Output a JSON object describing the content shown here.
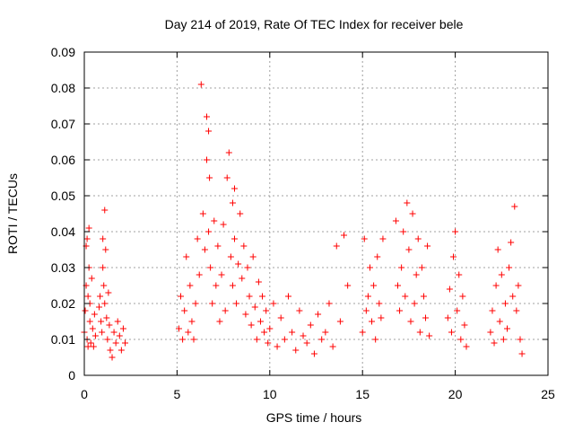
{
  "chart_data": {
    "type": "scatter",
    "title": "Day 214 of 2019, Rate Of TEC Index for receiver bele",
    "xlabel": "GPS time / hours",
    "ylabel": "ROTI / TECUs",
    "xlim": [
      0,
      25
    ],
    "ylim": [
      0,
      0.09
    ],
    "xticks": [
      "0",
      "5",
      "10",
      "15",
      "20",
      "25"
    ],
    "yticks": [
      "0",
      "0.01",
      "0.02",
      "0.03",
      "0.04",
      "0.05",
      "0.06",
      "0.07",
      "0.08",
      "0.09"
    ],
    "grid": true,
    "marker": "+",
    "color": "#ff0000",
    "series": [
      {
        "x": [
          0.0,
          0.05,
          0.1,
          0.1,
          0.15,
          0.15,
          0.2,
          0.2,
          0.25,
          0.25,
          0.3,
          0.3,
          0.35,
          0.4,
          0.45,
          0.5,
          0.55,
          0.6,
          0.8,
          0.85,
          0.9,
          0.95,
          1.0,
          1.0,
          1.05,
          1.1,
          1.1,
          1.15,
          1.2,
          1.25,
          1.3,
          1.35,
          1.4,
          1.5,
          1.6,
          1.7,
          1.8,
          1.9,
          2.0,
          2.1,
          2.2,
          5.1,
          5.2,
          5.3,
          5.4,
          5.5,
          5.6,
          5.7,
          5.8,
          5.9,
          6.0,
          6.1,
          6.2,
          6.3,
          6.4,
          6.5,
          6.6,
          6.6,
          6.7,
          6.7,
          6.75,
          6.8,
          6.9,
          7.0,
          7.1,
          7.2,
          7.3,
          7.4,
          7.5,
          7.6,
          7.7,
          7.8,
          7.9,
          8.0,
          8.0,
          8.1,
          8.1,
          8.2,
          8.3,
          8.4,
          8.5,
          8.6,
          8.7,
          8.8,
          8.9,
          9.0,
          9.1,
          9.2,
          9.3,
          9.4,
          9.5,
          9.6,
          9.7,
          9.8,
          9.9,
          10.0,
          10.2,
          10.4,
          10.6,
          10.8,
          11.0,
          11.2,
          11.4,
          11.6,
          11.8,
          12.0,
          12.2,
          12.4,
          12.6,
          12.8,
          13.0,
          13.2,
          13.4,
          13.6,
          13.8,
          14.0,
          14.2,
          15.0,
          15.1,
          15.2,
          15.3,
          15.4,
          15.5,
          15.6,
          15.7,
          15.8,
          15.9,
          16.0,
          16.1,
          16.8,
          16.9,
          17.0,
          17.1,
          17.2,
          17.3,
          17.4,
          17.5,
          17.6,
          17.7,
          17.8,
          17.9,
          18.0,
          18.1,
          18.2,
          18.3,
          18.4,
          18.5,
          18.6,
          19.6,
          19.7,
          19.8,
          19.9,
          20.0,
          20.1,
          20.2,
          20.3,
          20.4,
          20.5,
          20.6,
          21.9,
          22.0,
          22.1,
          22.2,
          22.3,
          22.4,
          22.5,
          22.6,
          22.7,
          22.8,
          22.9,
          23.0,
          23.1,
          23.2,
          23.3,
          23.4,
          23.5,
          23.6
        ],
        "y": [
          0.012,
          0.018,
          0.036,
          0.025,
          0.01,
          0.038,
          0.022,
          0.008,
          0.041,
          0.03,
          0.015,
          0.02,
          0.009,
          0.027,
          0.013,
          0.008,
          0.017,
          0.011,
          0.019,
          0.022,
          0.015,
          0.012,
          0.03,
          0.038,
          0.025,
          0.046,
          0.02,
          0.035,
          0.016,
          0.01,
          0.023,
          0.014,
          0.007,
          0.005,
          0.012,
          0.009,
          0.015,
          0.011,
          0.007,
          0.013,
          0.009,
          0.013,
          0.022,
          0.01,
          0.018,
          0.033,
          0.012,
          0.025,
          0.015,
          0.01,
          0.02,
          0.038,
          0.028,
          0.081,
          0.045,
          0.035,
          0.06,
          0.072,
          0.068,
          0.04,
          0.055,
          0.03,
          0.02,
          0.043,
          0.025,
          0.036,
          0.015,
          0.028,
          0.042,
          0.018,
          0.055,
          0.062,
          0.033,
          0.048,
          0.025,
          0.038,
          0.052,
          0.02,
          0.031,
          0.045,
          0.027,
          0.036,
          0.017,
          0.03,
          0.022,
          0.014,
          0.033,
          0.019,
          0.01,
          0.026,
          0.015,
          0.022,
          0.012,
          0.018,
          0.009,
          0.013,
          0.02,
          0.008,
          0.016,
          0.01,
          0.022,
          0.012,
          0.007,
          0.018,
          0.011,
          0.009,
          0.014,
          0.006,
          0.017,
          0.01,
          0.012,
          0.02,
          0.008,
          0.036,
          0.015,
          0.039,
          0.025,
          0.012,
          0.038,
          0.018,
          0.022,
          0.03,
          0.015,
          0.025,
          0.01,
          0.033,
          0.02,
          0.016,
          0.038,
          0.043,
          0.025,
          0.018,
          0.03,
          0.04,
          0.022,
          0.048,
          0.035,
          0.015,
          0.045,
          0.02,
          0.028,
          0.038,
          0.012,
          0.03,
          0.022,
          0.016,
          0.036,
          0.011,
          0.016,
          0.024,
          0.012,
          0.033,
          0.04,
          0.018,
          0.028,
          0.01,
          0.022,
          0.014,
          0.008,
          0.012,
          0.018,
          0.009,
          0.025,
          0.035,
          0.015,
          0.028,
          0.01,
          0.02,
          0.013,
          0.03,
          0.037,
          0.022,
          0.047,
          0.018,
          0.025,
          0.01,
          0.006
        ]
      }
    ]
  }
}
